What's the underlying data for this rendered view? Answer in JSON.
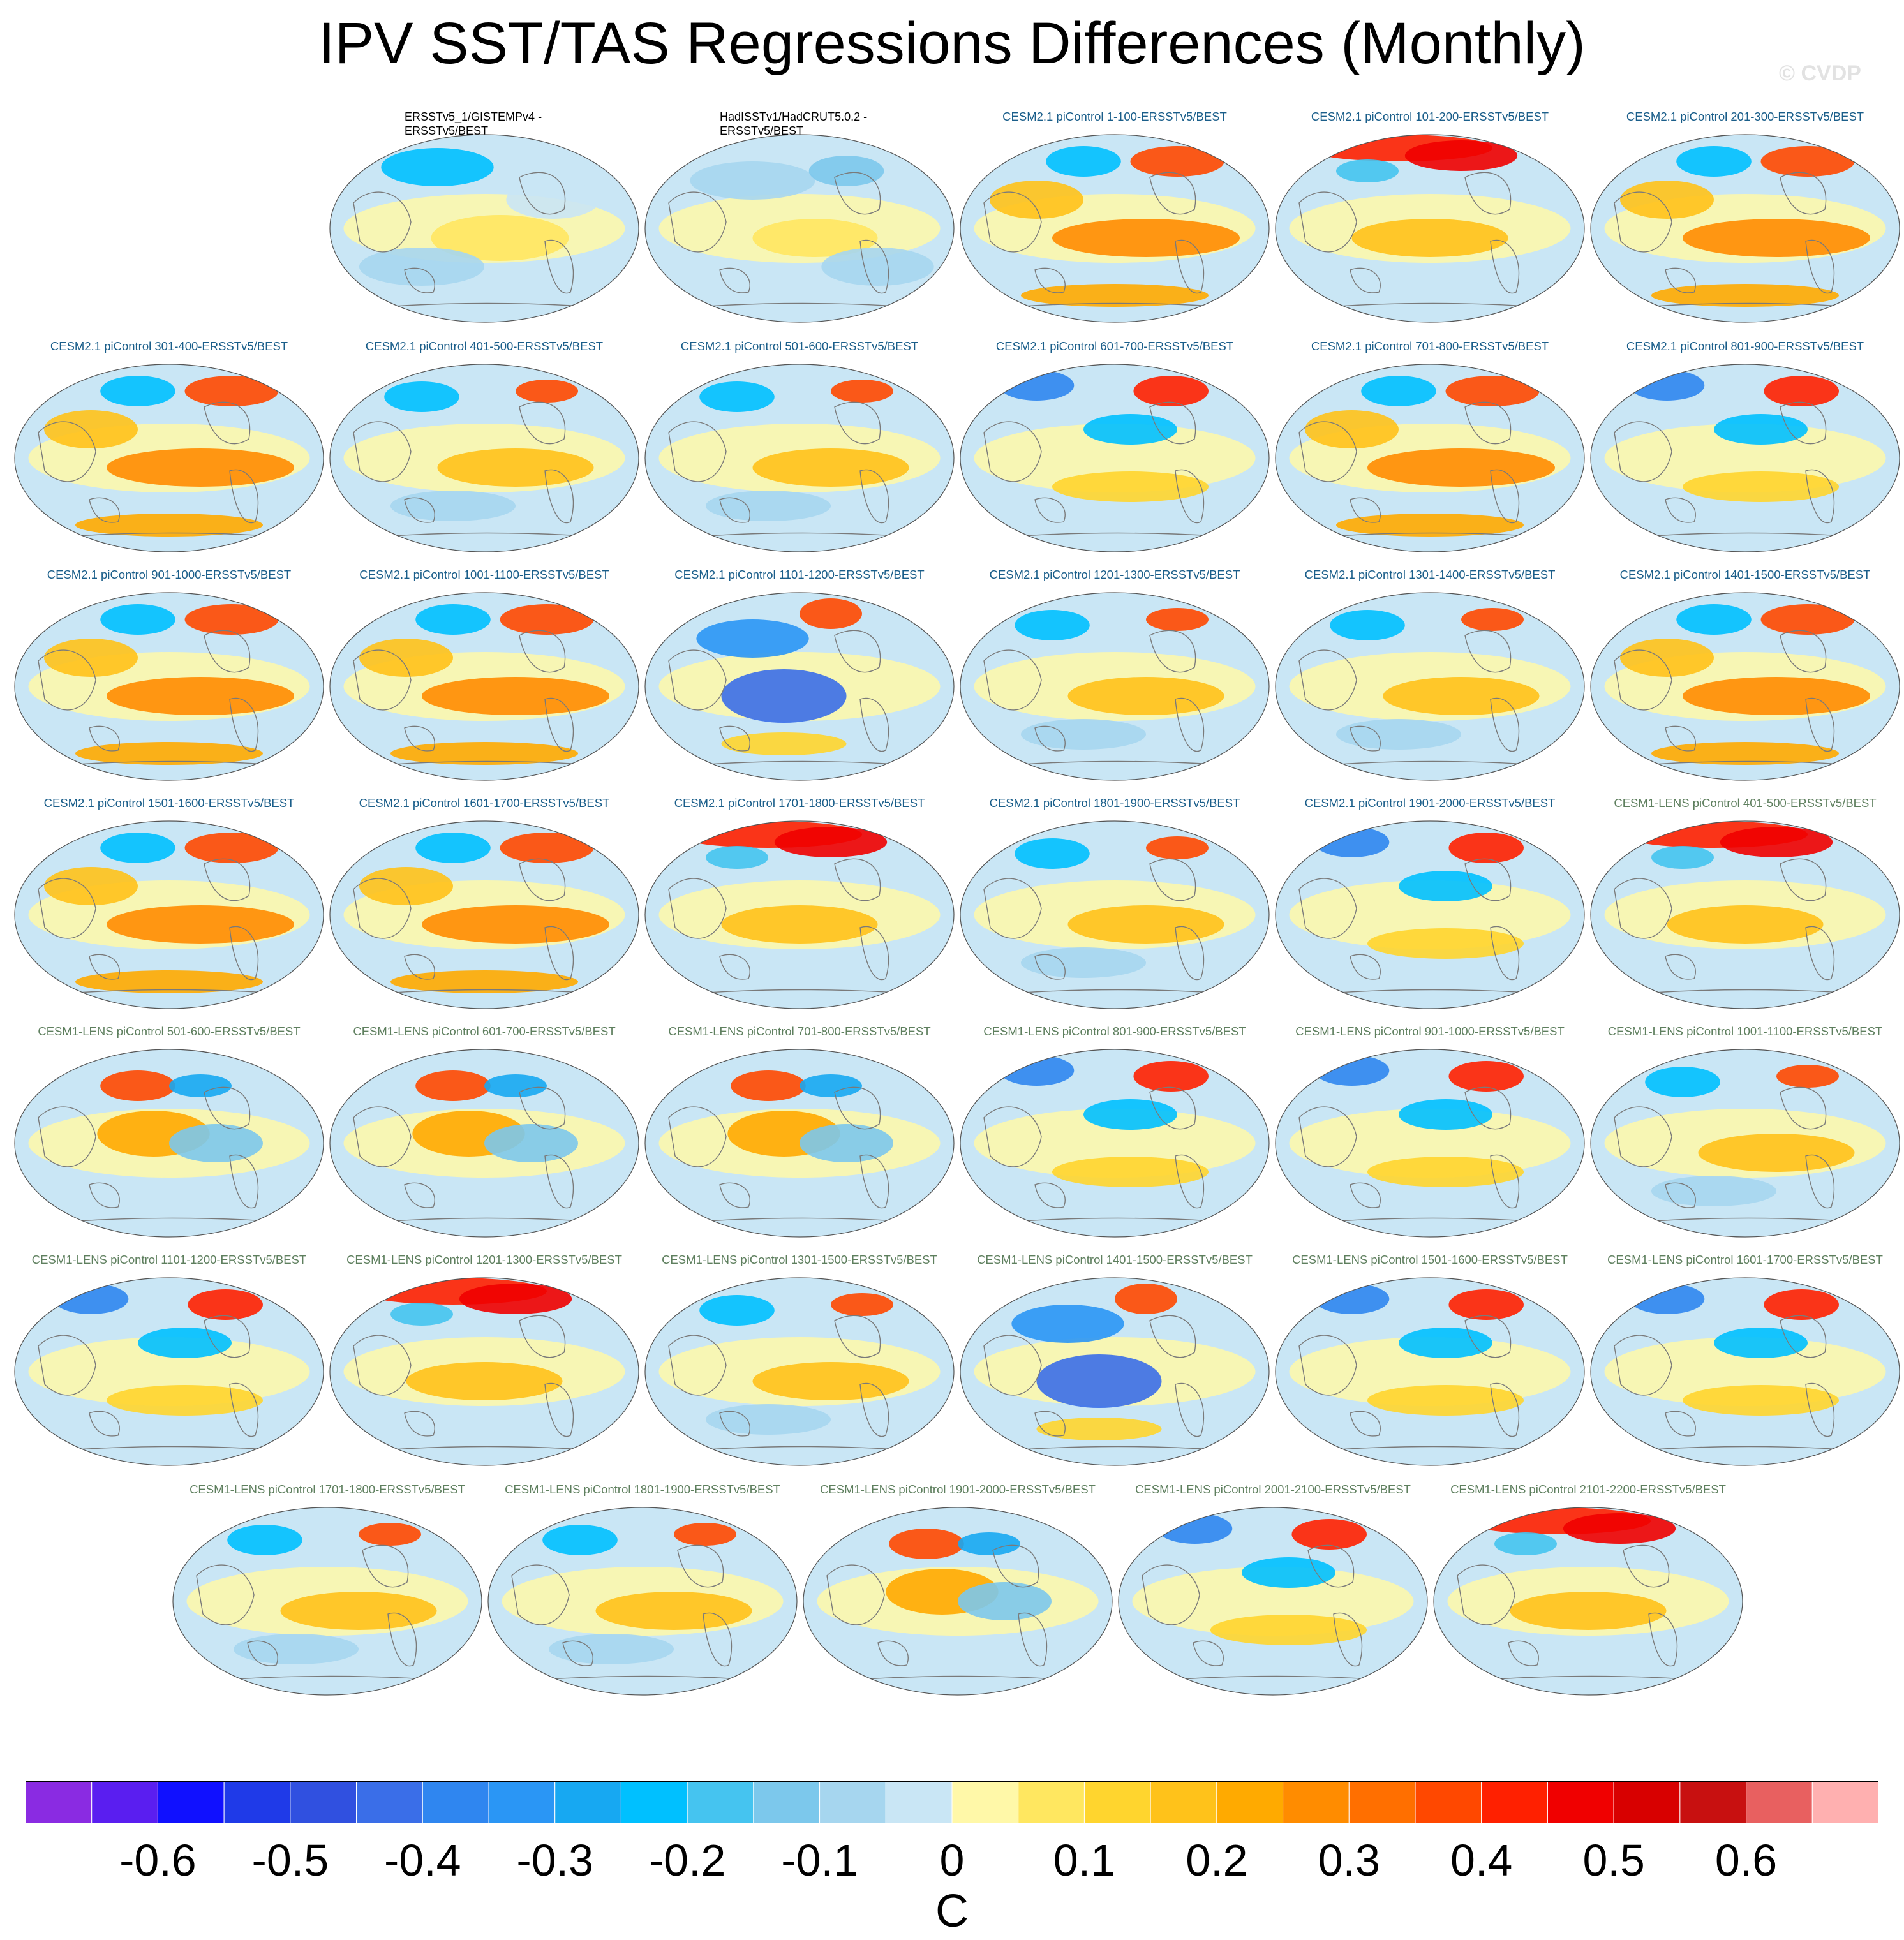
{
  "title": "IPV SST/TAS Regressions Differences (Monthly)",
  "copyright": "© CVDP",
  "panels": [
    {
      "title": "ERSSTv5_1/GISTEMPv4 - ERSSTv5/BEST",
      "group": "obs",
      "pattern": "obs_a"
    },
    {
      "title": "HadISSTv1/HadCRUT5.0.2 - ERSSTv5/BEST",
      "group": "obs",
      "pattern": "obs_b"
    },
    {
      "title": "CESM2.1 piControl 1-100-ERSSTv5/BEST",
      "group": "cesm2",
      "pattern": "warm_pac"
    },
    {
      "title": "CESM2.1 piControl 101-200-ERSSTv5/BEST",
      "group": "cesm2",
      "pattern": "warm_arctic"
    },
    {
      "title": "CESM2.1 piControl 201-300-ERSSTv5/BEST",
      "group": "cesm2",
      "pattern": "warm_pac"
    },
    {
      "title": "CESM2.1 piControl 301-400-ERSSTv5/BEST",
      "group": "cesm2",
      "pattern": "warm_pac"
    },
    {
      "title": "CESM2.1 piControl 401-500-ERSSTv5/BEST",
      "group": "cesm2",
      "pattern": "mixed"
    },
    {
      "title": "CESM2.1 piControl 501-600-ERSSTv5/BEST",
      "group": "cesm2",
      "pattern": "mixed"
    },
    {
      "title": "CESM2.1 piControl 601-700-ERSSTv5/BEST",
      "group": "cesm2",
      "pattern": "npac_cold"
    },
    {
      "title": "CESM2.1 piControl 701-800-ERSSTv5/BEST",
      "group": "cesm2",
      "pattern": "warm_pac"
    },
    {
      "title": "CESM2.1 piControl 801-900-ERSSTv5/BEST",
      "group": "cesm2",
      "pattern": "npac_cold"
    },
    {
      "title": "CESM2.1 piControl 901-1000-ERSSTv5/BEST",
      "group": "cesm2",
      "pattern": "warm_pac"
    },
    {
      "title": "CESM2.1 piControl 1001-1100-ERSSTv5/BEST",
      "group": "cesm2",
      "pattern": "warm_pac"
    },
    {
      "title": "CESM2.1 piControl 1101-1200-ERSSTv5/BEST",
      "group": "cesm2",
      "pattern": "cold_pac"
    },
    {
      "title": "CESM2.1 piControl 1201-1300-ERSSTv5/BEST",
      "group": "cesm2",
      "pattern": "mixed"
    },
    {
      "title": "CESM2.1 piControl 1301-1400-ERSSTv5/BEST",
      "group": "cesm2",
      "pattern": "mixed"
    },
    {
      "title": "CESM2.1 piControl 1401-1500-ERSSTv5/BEST",
      "group": "cesm2",
      "pattern": "warm_pac"
    },
    {
      "title": "CESM2.1 piControl 1501-1600-ERSSTv5/BEST",
      "group": "cesm2",
      "pattern": "warm_pac"
    },
    {
      "title": "CESM2.1 piControl 1601-1700-ERSSTv5/BEST",
      "group": "cesm2",
      "pattern": "warm_pac"
    },
    {
      "title": "CESM2.1 piControl 1701-1800-ERSSTv5/BEST",
      "group": "cesm2",
      "pattern": "warm_arctic"
    },
    {
      "title": "CESM2.1 piControl 1801-1900-ERSSTv5/BEST",
      "group": "cesm2",
      "pattern": "mixed"
    },
    {
      "title": "CESM2.1 piControl 1901-2000-ERSSTv5/BEST",
      "group": "cesm2",
      "pattern": "npac_cold"
    },
    {
      "title": "CESM1-LENS piControl 401-500-ERSSTv5/BEST",
      "group": "cesm1",
      "pattern": "warm_arctic"
    },
    {
      "title": "CESM1-LENS piControl 501-600-ERSSTv5/BEST",
      "group": "cesm1",
      "pattern": "warm_npac"
    },
    {
      "title": "CESM1-LENS piControl 601-700-ERSSTv5/BEST",
      "group": "cesm1",
      "pattern": "warm_npac"
    },
    {
      "title": "CESM1-LENS piControl 701-800-ERSSTv5/BEST",
      "group": "cesm1",
      "pattern": "warm_npac"
    },
    {
      "title": "CESM1-LENS piControl 801-900-ERSSTv5/BEST",
      "group": "cesm1",
      "pattern": "npac_cold"
    },
    {
      "title": "CESM1-LENS piControl 901-1000-ERSSTv5/BEST",
      "group": "cesm1",
      "pattern": "npac_cold"
    },
    {
      "title": "CESM1-LENS piControl 1001-1100-ERSSTv5/BEST",
      "group": "cesm1",
      "pattern": "mixed"
    },
    {
      "title": "CESM1-LENS piControl 1101-1200-ERSSTv5/BEST",
      "group": "cesm1",
      "pattern": "npac_cold"
    },
    {
      "title": "CESM1-LENS piControl 1201-1300-ERSSTv5/BEST",
      "group": "cesm1",
      "pattern": "warm_arctic"
    },
    {
      "title": "CESM1-LENS piControl 1301-1500-ERSSTv5/BEST",
      "group": "cesm1",
      "pattern": "mixed"
    },
    {
      "title": "CESM1-LENS piControl 1401-1500-ERSSTv5/BEST",
      "group": "cesm1",
      "pattern": "cold_pac"
    },
    {
      "title": "CESM1-LENS piControl 1501-1600-ERSSTv5/BEST",
      "group": "cesm1",
      "pattern": "npac_cold"
    },
    {
      "title": "CESM1-LENS piControl 1601-1700-ERSSTv5/BEST",
      "group": "cesm1",
      "pattern": "npac_cold"
    },
    {
      "title": "CESM1-LENS piControl 1701-1800-ERSSTv5/BEST",
      "group": "cesm1",
      "pattern": "mixed"
    },
    {
      "title": "CESM1-LENS piControl 1801-1900-ERSSTv5/BEST",
      "group": "cesm1",
      "pattern": "mixed"
    },
    {
      "title": "CESM1-LENS piControl 1901-2000-ERSSTv5/BEST",
      "group": "cesm1",
      "pattern": "warm_npac"
    },
    {
      "title": "CESM1-LENS piControl 2001-2100-ERSSTv5/BEST",
      "group": "cesm1",
      "pattern": "npac_cold"
    },
    {
      "title": "CESM1-LENS piControl 2101-2200-ERSSTv5/BEST",
      "group": "cesm1",
      "pattern": "warm_arctic"
    }
  ],
  "chart_data": {
    "type": "heatmap",
    "title": "IPV SST/TAS Regressions Differences (Monthly)",
    "projection": "Robinson (global maps)",
    "units": "C",
    "colorbar_label": "C",
    "colorbar_ticks": [
      "-0.6",
      "-0.5",
      "-0.4",
      "-0.3",
      "-0.2",
      "-0.1",
      "0",
      "0.1",
      "0.2",
      "0.3",
      "0.4",
      "0.5",
      "0.6"
    ],
    "colorbar_levels": [
      -0.65,
      -0.6,
      -0.55,
      -0.5,
      -0.45,
      -0.4,
      -0.35,
      -0.3,
      -0.25,
      -0.2,
      -0.15,
      -0.1,
      -0.05,
      0,
      0.05,
      0.1,
      0.15,
      0.2,
      0.25,
      0.3,
      0.35,
      0.4,
      0.45,
      0.5,
      0.55,
      0.6,
      0.65
    ],
    "colorbar_colors": [
      "#8a2be2",
      "#5a1ef0",
      "#1010ff",
      "#1f3ae8",
      "#3050e0",
      "#3a6ee8",
      "#2f86f0",
      "#2a96f5",
      "#17a8f2",
      "#00c0ff",
      "#45c4f0",
      "#7cc8ec",
      "#a6d6ef",
      "#c9e6f5",
      "#fff8a8",
      "#ffe760",
      "#ffd52e",
      "#ffc21a",
      "#ffaa00",
      "#ff8c00",
      "#ff6f00",
      "#ff4800",
      "#ff2000",
      "#f00000",
      "#d80000",
      "#c81010",
      "#e86060",
      "#ffb0b0"
    ]
  }
}
